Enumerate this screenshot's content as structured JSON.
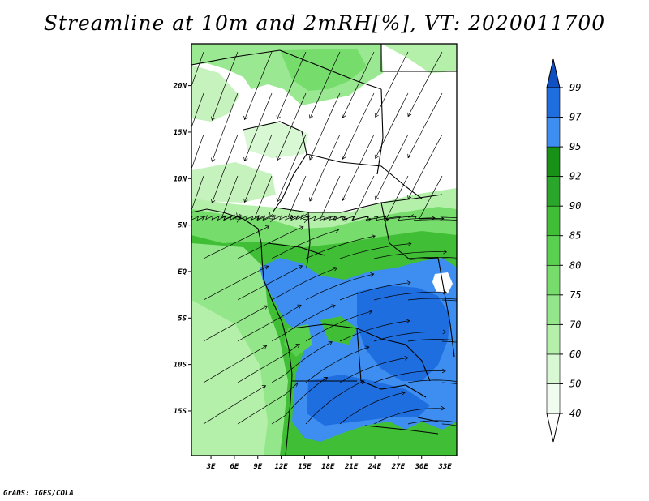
{
  "title": "Streamline at 10m and 2mRH[%], VT: 2020011700",
  "credit": "GrADS: IGES/COLA",
  "lat_labels": [
    "20N",
    "15N",
    "10N",
    "5N",
    "EQ",
    "5S",
    "10S",
    "15S"
  ],
  "lat_values": [
    20,
    15,
    10,
    5,
    0,
    -5,
    -10,
    -15
  ],
  "lon_labels": [
    "3E",
    "6E",
    "9E",
    "12E",
    "15E",
    "18E",
    "21E",
    "24E",
    "27E",
    "30E",
    "33E"
  ],
  "lon_values": [
    3,
    6,
    9,
    12,
    15,
    18,
    21,
    24,
    27,
    30,
    33
  ],
  "extent": {
    "lon_min": 0.5,
    "lon_max": 34.5,
    "lat_min": -19.8,
    "lat_max": 24.5
  },
  "colorbar": {
    "labels": [
      "40",
      "50",
      "60",
      "70",
      "75",
      "80",
      "85",
      "90",
      "92",
      "95",
      "97",
      "99"
    ],
    "colors": [
      "#f0fcf0",
      "#d7f8d2",
      "#b4f0aa",
      "#94e68a",
      "#76dd6c",
      "#5ad050",
      "#40bf36",
      "#2aa62a",
      "#179217",
      "#3d8ef0",
      "#1e6ee0",
      "#1050c0"
    ]
  }
}
